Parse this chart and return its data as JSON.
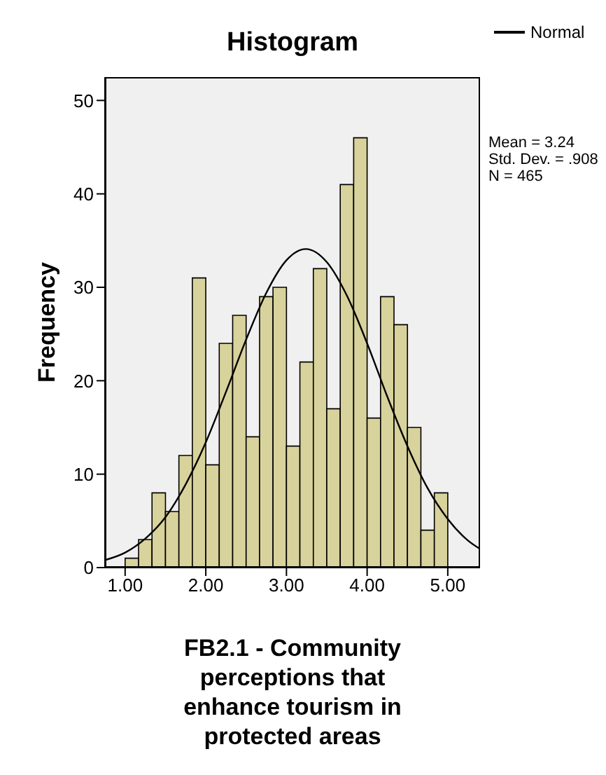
{
  "chart_data": {
    "type": "histogram",
    "title": "Histogram",
    "xlabel": "FB2.1 - Community perceptions that enhance tourism in protected areas",
    "ylabel": "Frequency",
    "bins": [
      1,
      1.1667,
      1.3333,
      1.5,
      1.6667,
      1.8333,
      2,
      2.1667,
      2.3333,
      2.5,
      2.6667,
      2.8333,
      3,
      3.1667,
      3.3333,
      3.5,
      3.6667,
      3.8333,
      4,
      4.1667,
      4.3333,
      4.5,
      4.6667,
      4.8333,
      5
    ],
    "values": [
      1,
      3,
      8,
      6,
      12,
      31,
      11,
      24,
      27,
      14,
      29,
      30,
      13,
      22,
      32,
      17,
      41,
      46,
      16,
      29,
      26,
      15,
      4,
      8
    ],
    "color": "#d8d29c",
    "series": [
      {
        "name": "Normal",
        "type": "line",
        "color": "#000000",
        "x": [
          0.75,
          1,
          1.25,
          1.5,
          1.75,
          2,
          2.25,
          2.5,
          2.75,
          3,
          3.24,
          3.5,
          3.75,
          4,
          4.25,
          4.5,
          4.75,
          5,
          5.25,
          5.4
        ],
        "values": [
          0.8,
          1.6,
          3.1,
          5.4,
          8.9,
          13.4,
          18.8,
          24.4,
          29.4,
          32.9,
          34.1,
          32.7,
          29.1,
          24,
          18.3,
          13,
          8.5,
          5.2,
          2.9,
          2
        ]
      }
    ],
    "xlim": [
      0.75,
      5.4
    ],
    "xticks": [
      {
        "value": 1,
        "label": "1.00"
      },
      {
        "value": 2,
        "label": "2.00"
      },
      {
        "value": 3,
        "label": "3.00"
      },
      {
        "value": 4,
        "label": "4.00"
      },
      {
        "value": 5,
        "label": "5.00"
      }
    ],
    "ylim": [
      0,
      52.5
    ],
    "yticks": [
      0,
      10,
      20,
      30,
      40,
      50
    ],
    "legend": "top right",
    "marker": "none",
    "line_style": "solid",
    "annotations": [
      "Mean = 3.24",
      "Std. Dev. = .908",
      "N = 465"
    ]
  }
}
